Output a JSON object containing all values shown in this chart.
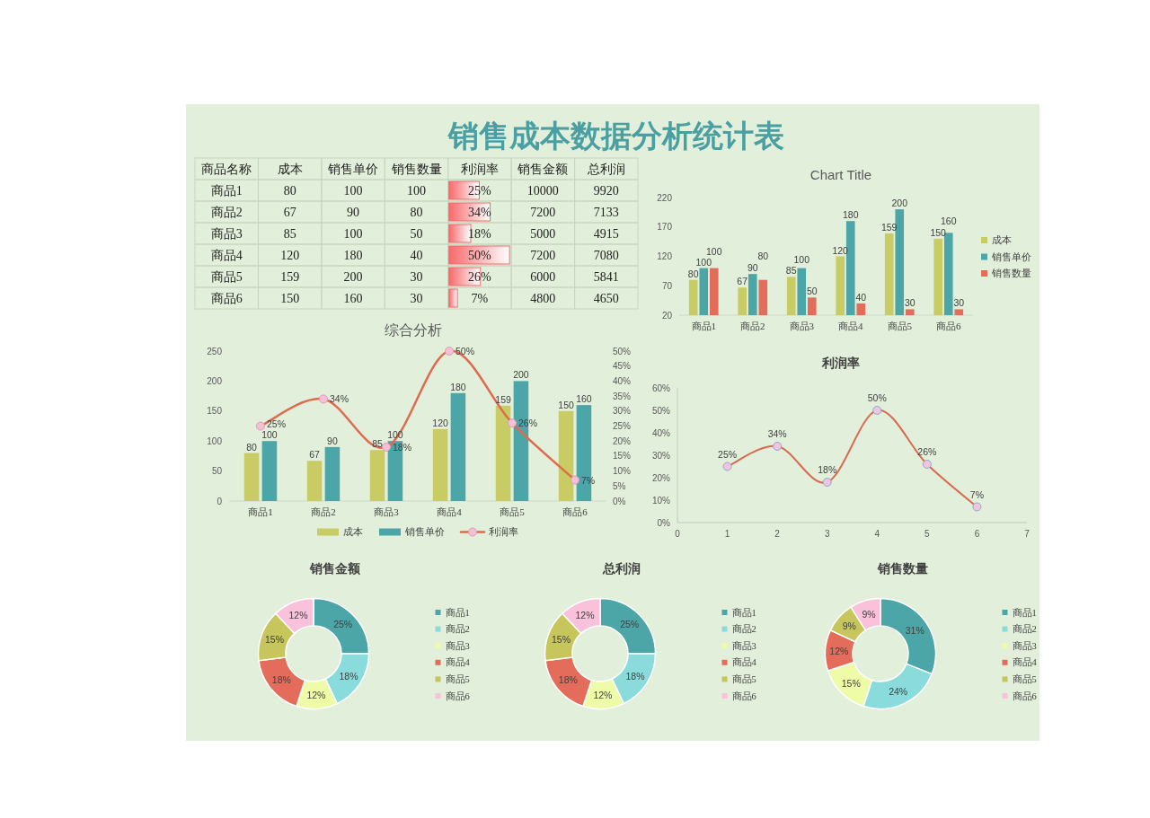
{
  "chart_data": [
    {
      "type": "other",
      "title": "销售成本数据分析统计表",
      "ylabel": "商品名称",
      "categories": [
        "商品1",
        "商品2",
        "商品3",
        "商品4",
        "商品5",
        "商品6"
      ],
      "data_labels": true,
      "series": [
        {
          "name": "成本",
          "values": [
            80,
            67,
            85,
            120,
            159,
            150
          ]
        },
        {
          "name": "销售单价",
          "values": [
            100,
            90,
            100,
            180,
            200,
            160
          ]
        },
        {
          "name": "销售数量",
          "values": [
            100,
            80,
            50,
            40,
            30,
            30
          ]
        },
        {
          "name": "利润率",
          "type": "bar",
          "color": "#f8696b",
          "values": [
            25,
            34,
            18,
            50,
            26,
            7
          ],
          "value_labels": [
            "25%",
            "34%",
            "18%",
            "50%",
            "26%",
            "7%"
          ]
        },
        {
          "name": "销售金额",
          "values": [
            10000,
            7200,
            5000,
            7200,
            6000,
            4800
          ]
        },
        {
          "name": "总利润",
          "values": [
            9920,
            7133,
            4915,
            7080,
            5841,
            4650
          ]
        }
      ]
    },
    {
      "type": "bar",
      "title": "Chart Title",
      "categories": [
        "商品1",
        "商品2",
        "商品3",
        "商品4",
        "商品5",
        "商品6"
      ],
      "series": [
        {
          "name": "成本",
          "color": "#c9cb65",
          "values": [
            80,
            67,
            85,
            120,
            159,
            150
          ]
        },
        {
          "name": "销售单价",
          "color": "#4ca6a8",
          "values": [
            100,
            90,
            100,
            180,
            200,
            160
          ]
        },
        {
          "name": "销售数量",
          "color": "#e36c5a",
          "values": [
            100,
            80,
            50,
            40,
            30,
            30
          ]
        }
      ],
      "ylim": [
        20,
        220
      ],
      "yticks": [
        20,
        70,
        120,
        170,
        220
      ],
      "data_labels": true,
      "legend": "right"
    },
    {
      "type": "bar",
      "title": "综合分析",
      "categories": [
        "商品1",
        "商品2",
        "商品3",
        "商品4",
        "商品5",
        "商品6"
      ],
      "series": [
        {
          "name": "成本",
          "color": "#c9cb65",
          "values": [
            80,
            67,
            85,
            120,
            159,
            150
          ]
        },
        {
          "name": "销售单价",
          "color": "#4ca6a8",
          "values": [
            100,
            90,
            100,
            180,
            200,
            160
          ]
        },
        {
          "name": "利润率",
          "type": "line",
          "axis": "y2",
          "color": "#df6b4f",
          "values": [
            25,
            34,
            18,
            50,
            26,
            7
          ],
          "value_labels": [
            "25%",
            "34%",
            "18%",
            "50%",
            "26%",
            "7%"
          ]
        }
      ],
      "ylim": [
        0,
        250
      ],
      "yticks": [
        0,
        50,
        100,
        150,
        200,
        250
      ],
      "y2lim": [
        0,
        50
      ],
      "y2ticks": [
        {
          "value": 0,
          "label": "0%"
        },
        {
          "value": 5,
          "label": "5%"
        },
        {
          "value": 10,
          "label": "10%"
        },
        {
          "value": 15,
          "label": "15%"
        },
        {
          "value": 20,
          "label": "20%"
        },
        {
          "value": 25,
          "label": "25%"
        },
        {
          "value": 30,
          "label": "30%"
        },
        {
          "value": 35,
          "label": "35%"
        },
        {
          "value": 40,
          "label": "40%"
        },
        {
          "value": 45,
          "label": "45%"
        },
        {
          "value": 50,
          "label": "50%"
        }
      ],
      "data_labels": true,
      "legend": "bottom",
      "marker": "circle"
    },
    {
      "type": "line",
      "title": "利润率",
      "x": [
        1,
        2,
        3,
        4,
        5,
        6
      ],
      "series": [
        {
          "color": "#d9694f",
          "values": [
            25,
            34,
            18,
            50,
            26,
            7
          ],
          "value_labels": [
            "25%",
            "34%",
            "18%",
            "50%",
            "26%",
            "7%"
          ]
        }
      ],
      "xlim": [
        0,
        7
      ],
      "xticks": [
        0,
        1,
        2,
        3,
        4,
        5,
        6,
        7
      ],
      "ylim": [
        0,
        60
      ],
      "yticks": [
        {
          "value": 0,
          "label": "0%"
        },
        {
          "value": 10,
          "label": "10%"
        },
        {
          "value": 20,
          "label": "20%"
        },
        {
          "value": 30,
          "label": "30%"
        },
        {
          "value": 40,
          "label": "40%"
        },
        {
          "value": 50,
          "label": "50%"
        },
        {
          "value": 60,
          "label": "60%"
        }
      ],
      "marker": "circle"
    },
    {
      "type": "donut",
      "title": "销售金额",
      "categories": [
        "商品1",
        "商品2",
        "商品3",
        "商品4",
        "商品5",
        "商品6"
      ],
      "values": [
        25,
        18,
        12,
        18,
        15,
        12
      ],
      "value_labels": [
        "25%",
        "18%",
        "12%",
        "18%",
        "15%",
        "12%"
      ],
      "colors": [
        "#4ca6a8",
        "#8adcdc",
        "#eefca8",
        "#e36c5a",
        "#c6c65c",
        "#f9c2da"
      ],
      "legend": "right"
    },
    {
      "type": "donut",
      "title": "总利润",
      "categories": [
        "商品1",
        "商品2",
        "商品3",
        "商品4",
        "商品5",
        "商品6"
      ],
      "values": [
        25,
        18,
        12,
        18,
        15,
        12
      ],
      "value_labels": [
        "25%",
        "18%",
        "12%",
        "18%",
        "15%",
        "12%"
      ],
      "colors": [
        "#4ca6a8",
        "#8adcdc",
        "#eefca8",
        "#e36c5a",
        "#c6c65c",
        "#f9c2da"
      ],
      "legend": "right"
    },
    {
      "type": "donut",
      "title": "销售数量",
      "categories": [
        "商品1",
        "商品2",
        "商品3",
        "商品4",
        "商品5",
        "商品6"
      ],
      "values": [
        31,
        24,
        15,
        12,
        9,
        9
      ],
      "value_labels": [
        "31%",
        "24%",
        "15%",
        "12%",
        "9%",
        "9%"
      ],
      "colors": [
        "#4ca6a8",
        "#8adcdc",
        "#eefca8",
        "#e36c5a",
        "#c6c65c",
        "#f9c2da"
      ],
      "legend": "right"
    }
  ]
}
